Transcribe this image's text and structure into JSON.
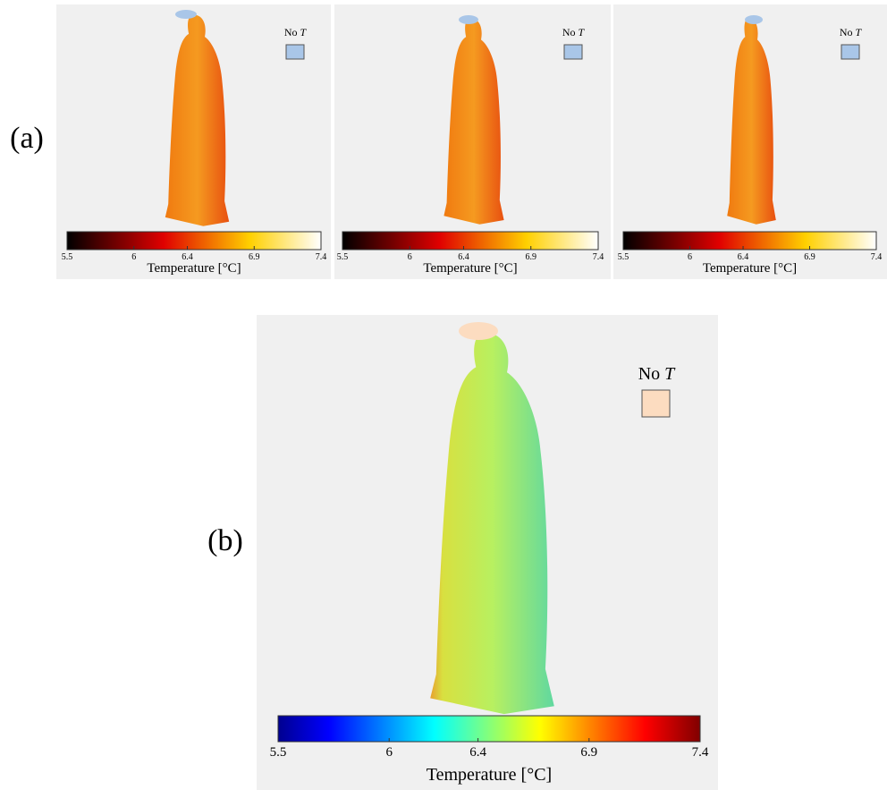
{
  "panel_a": {
    "label": "(a)",
    "views": [
      {
        "legend": {
          "label": "No",
          "symbol": "T"
        },
        "colorbar": {
          "range": [
            5.5,
            7.4
          ],
          "ticks": [
            5.5,
            6,
            6.4,
            6.9,
            7.4
          ],
          "title": "Temperature [°C]"
        }
      },
      {
        "legend": {
          "label": "No",
          "symbol": "T"
        },
        "colorbar": {
          "range": [
            5.5,
            7.4
          ],
          "ticks": [
            5.5,
            6,
            6.4,
            6.9,
            7.4
          ],
          "title": "Temperature [°C]"
        }
      },
      {
        "legend": {
          "label": "No",
          "symbol": "T"
        },
        "colorbar": {
          "range": [
            5.5,
            7.4
          ],
          "ticks": [
            5.5,
            6,
            6.4,
            6.9,
            7.4
          ],
          "title": "Temperature [°C]"
        }
      }
    ]
  },
  "panel_b": {
    "label": "(b)",
    "legend": {
      "label": "No",
      "symbol": "T"
    },
    "colorbar": {
      "range": [
        5.5,
        7.4
      ],
      "ticks": [
        5.5,
        6,
        6.4,
        6.9,
        7.4
      ],
      "title": "Temperature [°C]"
    }
  }
}
